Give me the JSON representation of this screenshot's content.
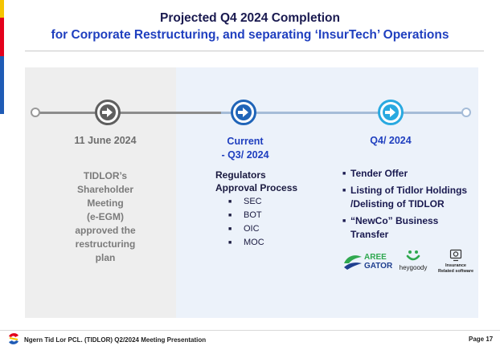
{
  "header": {
    "title_line1": "Projected Q4 2024 Completion",
    "title_line2": "for Corporate Restructuring, and separating ‘InsurTech’ Operations"
  },
  "timeline": {
    "milestones": [
      {
        "date": "11 June 2024",
        "description": "TIDLOR’s\nShareholder\nMeeting\n(e-EGM)\napproved the\nrestructuring\nplan",
        "icon": "arrow-right-circle-icon",
        "color": "#5f5f5f"
      },
      {
        "date": "Current\n- Q3/ 2024",
        "heading": "Regulators\nApproval Process",
        "items": [
          "SEC",
          "BOT",
          "OIC",
          "MOC"
        ],
        "icon": "arrow-right-circle-icon",
        "color": "#1f64b8"
      },
      {
        "date": "Q4/ 2024",
        "items": [
          "Tender Offer",
          "Listing of Tidlor Holdings\n/Delisting of TIDLOR",
          "“NewCo” Business\nTransfer"
        ],
        "icon": "arrow-right-circle-icon",
        "color": "#29a9e0"
      }
    ],
    "bullet_glyph": "■"
  },
  "logos": {
    "aree_line1": "AREE",
    "aree_line2": "GATOR",
    "heygoody": "heygoody",
    "insurance": "Insurance\nRelated software"
  },
  "footer": {
    "company": "Ngern Tid Lor PCL. (TIDLOR) Q2/2024 Meeting Presentation",
    "page": "Page 17"
  },
  "colors": {
    "navy": "#1a1a50",
    "accent_blue": "#1f3fbf",
    "left_panel": "#eeeeee",
    "right_panel": "#ecf2fa"
  }
}
